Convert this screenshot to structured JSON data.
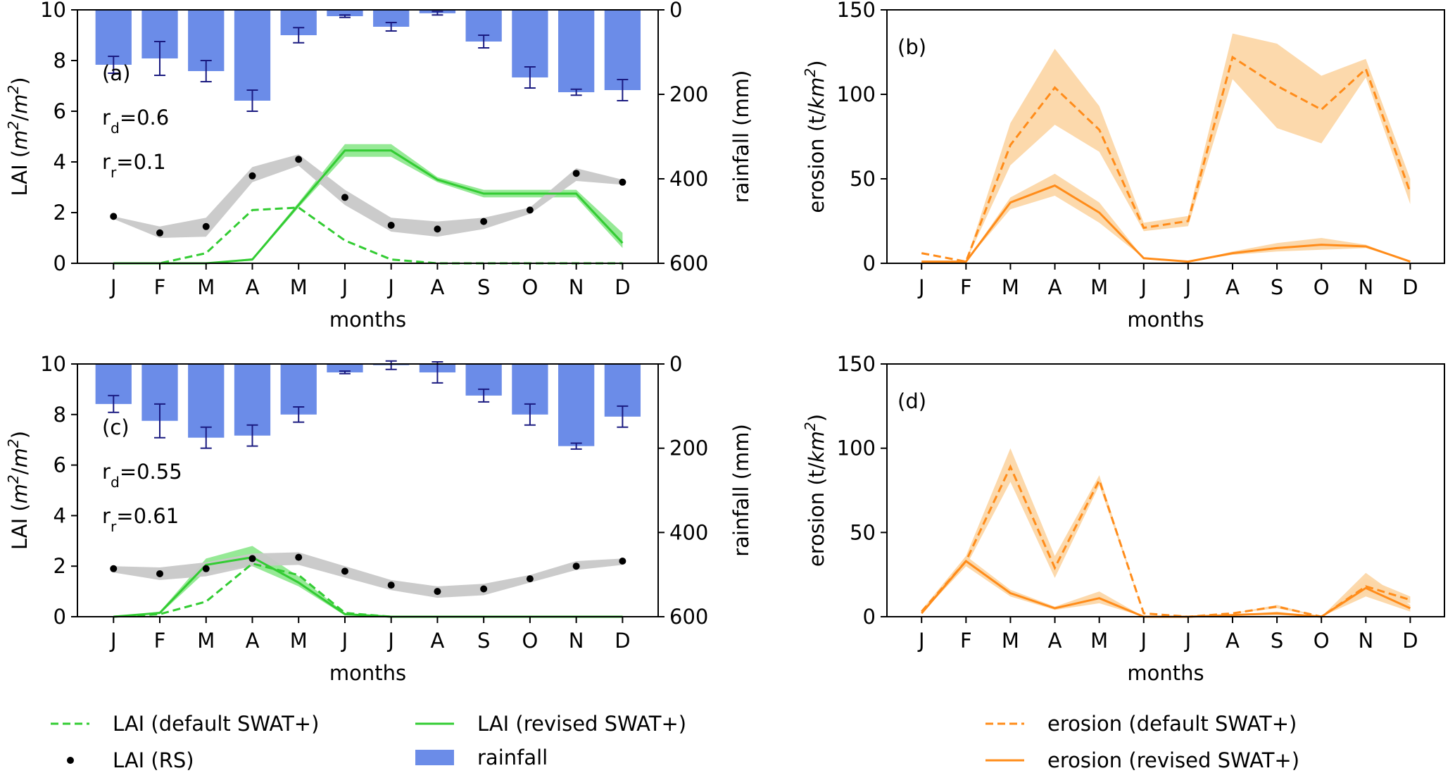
{
  "colors": {
    "rainfall_bar": "#6b8ce8",
    "errorbar": "#1a1a80",
    "lai_green": "#33cc33",
    "lai_green_band": "#90e890",
    "rs_band": "#c8c8c8",
    "rs_point": "#000000",
    "erosion_orange": "#ff8c1a",
    "erosion_band": "#fcd7a8"
  },
  "legend": {
    "lai_default": "LAI (default SWAT+)",
    "lai_revised": "LAI (revised SWAT+)",
    "lai_rs": "LAI (RS)",
    "rainfall": "rainfall",
    "erosion_default": "erosion (default SWAT+)",
    "erosion_revised": "erosion (revised SWAT+)"
  },
  "chart_data": [
    {
      "panel": "a",
      "type": "line",
      "annotation": [
        "(a)",
        "r",
        "d",
        "=0.6",
        "r",
        "r",
        "=0.1"
      ],
      "categories": [
        "J",
        "F",
        "M",
        "A",
        "M",
        "J",
        "J",
        "A",
        "S",
        "O",
        "N",
        "D"
      ],
      "xlabel": "months",
      "ylabel": "LAI (m²/m²)",
      "ylim": [
        0,
        10
      ],
      "yticks": [
        0,
        2,
        4,
        6,
        8,
        10
      ],
      "y2label": "rainfall (mm)",
      "y2lim": [
        600,
        0
      ],
      "y2ticks": [
        0,
        200,
        400,
        600
      ],
      "series": [
        {
          "name": "rainfall",
          "type": "bar",
          "axis": "right",
          "values": [
            130,
            115,
            145,
            215,
            60,
            15,
            40,
            8,
            75,
            160,
            195,
            190
          ],
          "err": [
            20,
            40,
            25,
            25,
            18,
            3,
            10,
            4,
            15,
            25,
            7,
            25
          ]
        },
        {
          "name": "LAI (default SWAT+)",
          "type": "line",
          "style": "dashed",
          "values": [
            0,
            0,
            0.4,
            2.1,
            2.2,
            0.9,
            0.15,
            0,
            0,
            0,
            0,
            0
          ]
        },
        {
          "name": "LAI (revised SWAT+)",
          "type": "line",
          "style": "solid",
          "values": [
            0,
            0,
            0,
            0.15,
            2.3,
            4.45,
            4.45,
            3.3,
            2.75,
            2.75,
            2.75,
            0.8
          ],
          "band_lo": [
            0,
            0,
            0,
            0.1,
            2.2,
            4.2,
            4.2,
            3.2,
            2.6,
            2.6,
            2.6,
            0.6
          ],
          "band_hi": [
            0,
            0,
            0,
            0.2,
            2.4,
            4.7,
            4.7,
            3.4,
            2.9,
            2.9,
            2.9,
            1.2
          ]
        },
        {
          "name": "LAI (RS)",
          "type": "scatter",
          "values": [
            1.85,
            1.2,
            1.45,
            3.45,
            4.1,
            2.6,
            1.5,
            1.35,
            1.65,
            2.1,
            3.55,
            3.2
          ],
          "band_lo": [
            1.75,
            1.0,
            1.05,
            3.2,
            3.85,
            2.3,
            1.25,
            1.05,
            1.35,
            1.95,
            3.25,
            3.1
          ],
          "band_hi": [
            1.85,
            1.45,
            1.8,
            3.8,
            4.3,
            2.9,
            1.8,
            1.65,
            1.8,
            2.2,
            3.75,
            3.3
          ]
        }
      ]
    },
    {
      "panel": "b",
      "type": "line",
      "annotation": [
        "(b)"
      ],
      "categories": [
        "J",
        "F",
        "M",
        "A",
        "M",
        "J",
        "J",
        "A",
        "S",
        "O",
        "N",
        "D"
      ],
      "xlabel": "months",
      "ylabel": "erosion (t/km²)",
      "ylim": [
        0,
        150
      ],
      "yticks": [
        0,
        50,
        100,
        150
      ],
      "series": [
        {
          "name": "erosion (default SWAT+)",
          "style": "dashed",
          "values": [
            6,
            1,
            70,
            104,
            79,
            21,
            25,
            122,
            105,
            91,
            115,
            42
          ],
          "band_lo": [
            6,
            1,
            58,
            82,
            66,
            19,
            22,
            109,
            80,
            71,
            110,
            35
          ],
          "band_hi": [
            6,
            1,
            83,
            127,
            93,
            24,
            28,
            136,
            130,
            111,
            121,
            50
          ]
        },
        {
          "name": "erosion (revised SWAT+)",
          "style": "solid",
          "values": [
            1,
            1,
            36,
            46,
            30,
            3,
            1,
            6,
            9,
            11,
            10,
            1
          ],
          "band_lo": [
            1,
            1,
            32,
            40,
            24,
            3,
            1,
            5,
            7,
            8,
            9,
            1
          ],
          "band_hi": [
            1,
            1,
            39,
            53,
            36,
            3,
            1,
            7,
            12,
            15,
            11,
            1
          ]
        }
      ]
    },
    {
      "panel": "c",
      "type": "line",
      "annotation": [
        "(c)",
        "r",
        "d",
        "=0.55",
        "r",
        "r",
        "=0.61"
      ],
      "categories": [
        "J",
        "F",
        "M",
        "A",
        "M",
        "J",
        "J",
        "A",
        "S",
        "O",
        "N",
        "D"
      ],
      "xlabel": "months",
      "ylabel": "LAI (m²/m²)",
      "ylim": [
        0,
        10
      ],
      "yticks": [
        0,
        2,
        4,
        6,
        8,
        10
      ],
      "y2label": "rainfall (mm)",
      "y2lim": [
        600,
        0
      ],
      "y2ticks": [
        0,
        200,
        400,
        600
      ],
      "series": [
        {
          "name": "rainfall",
          "type": "bar",
          "axis": "right",
          "values": [
            95,
            135,
            175,
            170,
            120,
            20,
            3,
            20,
            75,
            120,
            195,
            125
          ],
          "err": [
            20,
            40,
            25,
            25,
            18,
            3,
            10,
            25,
            15,
            25,
            7,
            25
          ]
        },
        {
          "name": "LAI (default SWAT+)",
          "type": "line",
          "style": "dashed",
          "values": [
            0,
            0.1,
            0.6,
            2.1,
            1.65,
            0.15,
            0,
            0,
            0,
            0,
            0,
            0
          ]
        },
        {
          "name": "LAI (revised SWAT+)",
          "type": "line",
          "style": "solid",
          "values": [
            0,
            0.15,
            2.05,
            2.35,
            1.35,
            0.1,
            0,
            0,
            0,
            0,
            0,
            0
          ],
          "band_lo": [
            0,
            0.1,
            1.8,
            2.0,
            1.2,
            0.05,
            0,
            0,
            0,
            0,
            0,
            0
          ],
          "band_hi": [
            0,
            0.2,
            2.3,
            2.8,
            1.6,
            0.15,
            0,
            0,
            0,
            0,
            0,
            0
          ]
        },
        {
          "name": "LAI (RS)",
          "type": "scatter",
          "values": [
            1.9,
            1.7,
            1.9,
            2.3,
            2.35,
            1.8,
            1.25,
            1.0,
            1.1,
            1.5,
            2.0,
            2.2
          ],
          "band_lo": [
            1.75,
            1.45,
            1.6,
            2.0,
            2.05,
            1.55,
            1.05,
            0.75,
            0.85,
            1.35,
            1.85,
            2.05
          ],
          "band_hi": [
            2.0,
            1.95,
            2.15,
            2.5,
            2.55,
            2.0,
            1.45,
            1.2,
            1.3,
            1.65,
            2.2,
            2.3
          ]
        }
      ]
    },
    {
      "panel": "d",
      "type": "line",
      "annotation": [
        "(d)"
      ],
      "categories": [
        "J",
        "F",
        "M",
        "A",
        "M",
        "J",
        "J",
        "A",
        "S",
        "O",
        "N",
        "D"
      ],
      "xlabel": "months",
      "ylabel": "erosion (t/km²)",
      "ylim": [
        0,
        150
      ],
      "yticks": [
        0,
        50,
        100,
        150
      ],
      "series": [
        {
          "name": "erosion (default SWAT+)",
          "style": "dashed",
          "values": [
            3,
            33,
            89,
            29,
            81,
            2,
            0,
            2,
            6,
            0,
            18,
            10
          ],
          "band_lo": [
            2,
            30,
            80,
            23,
            78,
            2,
            0,
            2,
            5,
            0,
            14,
            8
          ],
          "band_hi": [
            4,
            36,
            100,
            36,
            84,
            2,
            0,
            2,
            7,
            0,
            23,
            12
          ]
        },
        {
          "name": "erosion (revised SWAT+)",
          "style": "solid",
          "values": [
            2,
            33,
            14,
            5,
            11,
            0,
            0,
            1,
            2,
            0,
            17,
            5
          ],
          "band_lo": [
            2,
            30,
            12,
            4,
            8,
            0,
            0,
            1,
            1,
            0,
            12,
            3
          ],
          "band_hi": [
            3,
            36,
            16,
            6,
            15,
            0,
            0,
            1,
            3,
            0,
            26,
            7
          ]
        }
      ]
    }
  ]
}
